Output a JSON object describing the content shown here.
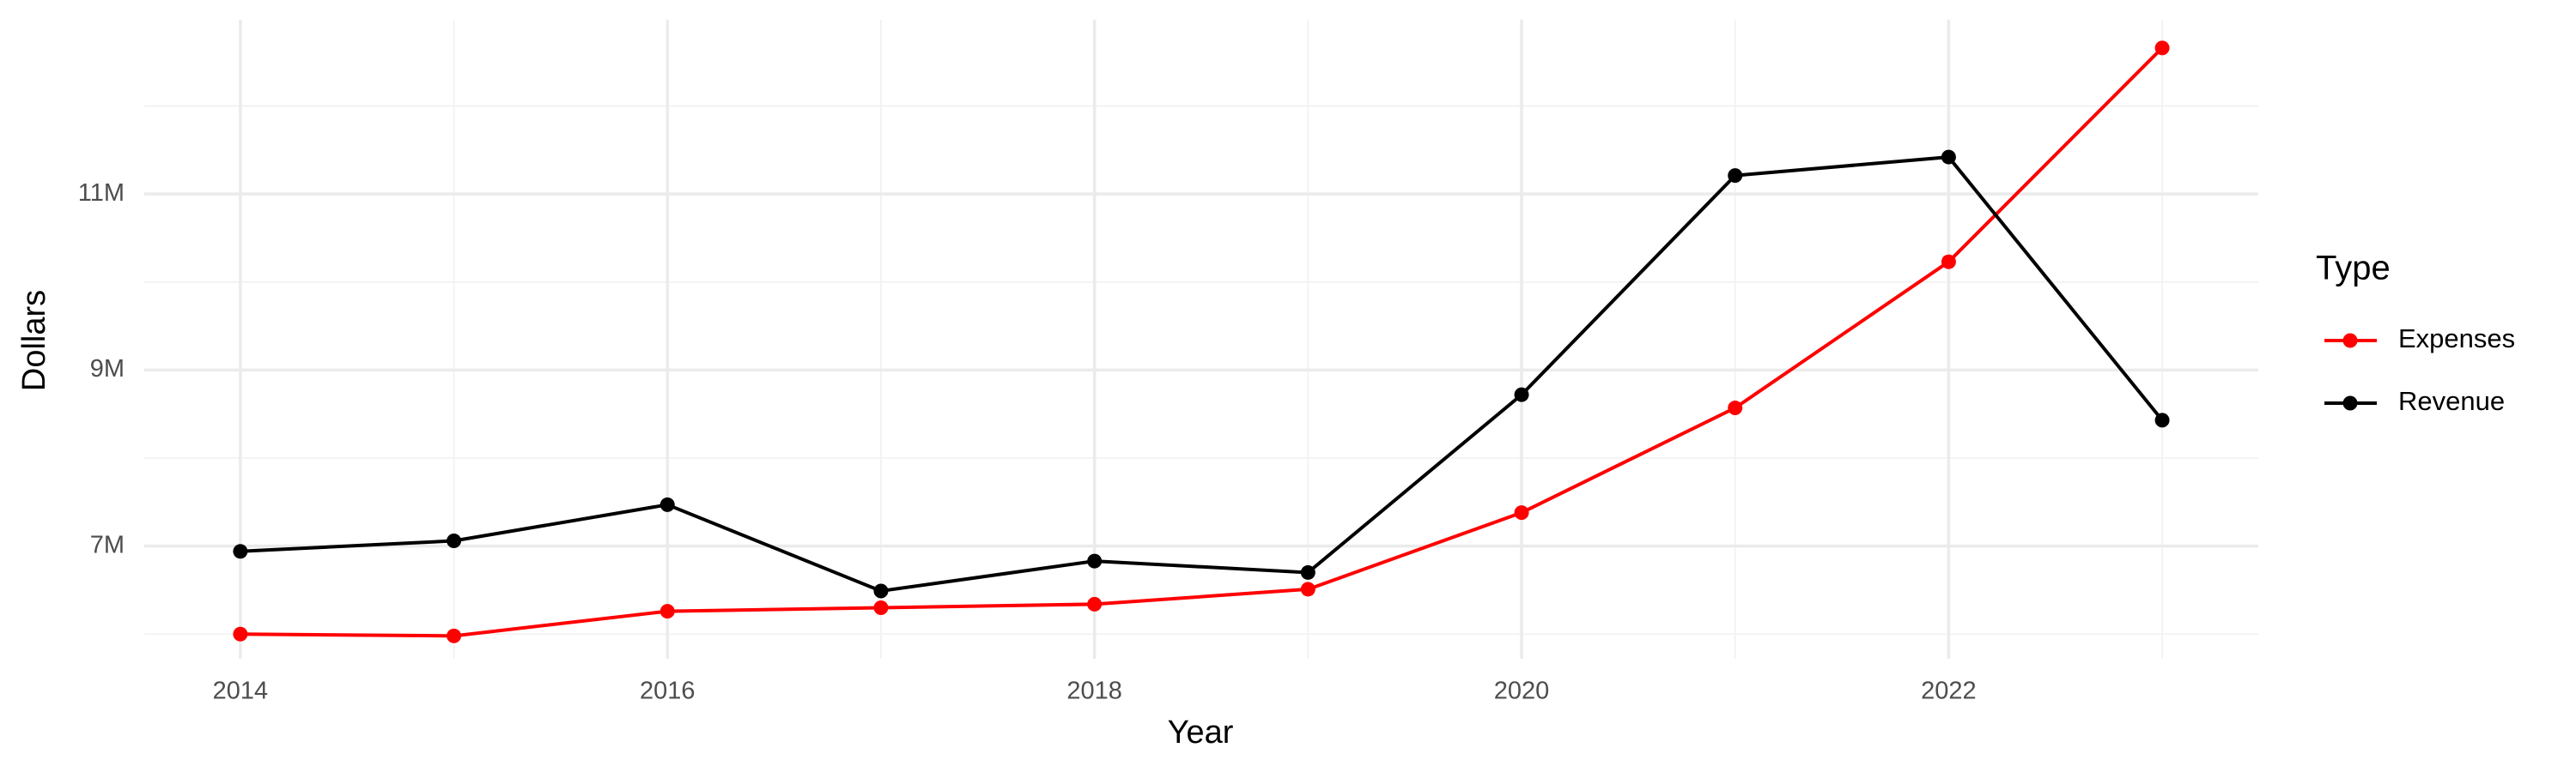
{
  "chart_data": {
    "type": "line",
    "x_label": "Year",
    "y_label": "Dollars",
    "legend_title": "Type",
    "x": [
      2014,
      2015,
      2016,
      2017,
      2018,
      2019,
      2020,
      2021,
      2022,
      2023
    ],
    "series": [
      {
        "name": "Expenses",
        "color": "#ff0000",
        "values": [
          6000000,
          5980000,
          6260000,
          6300000,
          6340000,
          6510000,
          7380000,
          8570000,
          10230000,
          12660000
        ]
      },
      {
        "name": "Revenue",
        "color": "#000000",
        "values": [
          6940000,
          7060000,
          7470000,
          6490000,
          6830000,
          6700000,
          8720000,
          11210000,
          11420000,
          8430000
        ]
      }
    ],
    "xlim": [
      2013.55,
      2023.45
    ],
    "xticks": [
      2014,
      2016,
      2018,
      2020,
      2022
    ],
    "x_minor_grid": [
      2015,
      2017,
      2019,
      2021,
      2023
    ],
    "ylim": [
      5720000,
      12980000
    ],
    "yticks": [
      {
        "value": 7000000,
        "label": "7M"
      },
      {
        "value": 9000000,
        "label": "9M"
      },
      {
        "value": 11000000,
        "label": "11M"
      }
    ],
    "y_minor_grid": [
      6000000,
      8000000,
      10000000,
      12000000
    ],
    "grid": true,
    "legend": "right"
  }
}
